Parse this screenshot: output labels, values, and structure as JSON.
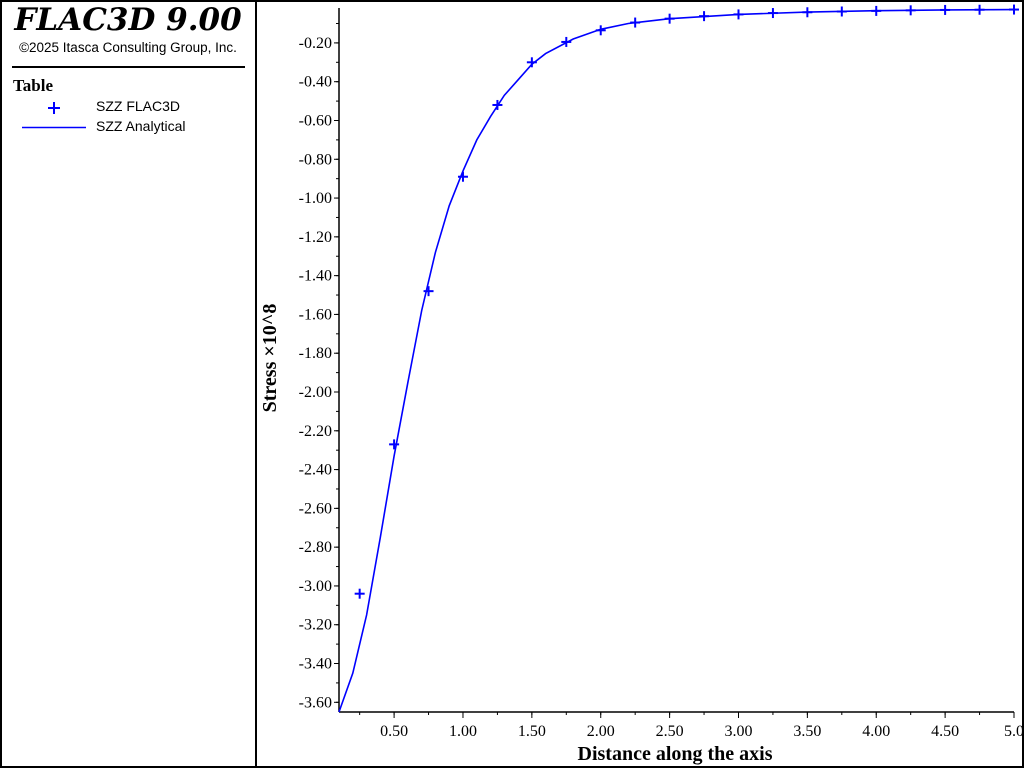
{
  "header": {
    "app_title": "FLAC3D 9.00",
    "copyright": "©2025 Itasca Consulting Group, Inc."
  },
  "legend": {
    "title": "Table",
    "items": [
      {
        "label": "SZZ FLAC3D",
        "marker": "plus"
      },
      {
        "label": "SZZ Analytical",
        "marker": "line"
      }
    ]
  },
  "colors": {
    "series": "#0000ff",
    "axes": "#000000",
    "background": "#ffffff"
  },
  "chart_data": {
    "type": "line",
    "xlabel": "Distance along the axis",
    "ylabel": "Stress ×10^8",
    "xlim": [
      0.1,
      5.0
    ],
    "ylim": [
      -3.65,
      -0.02
    ],
    "xticks": [
      "0.50",
      "1.00",
      "1.50",
      "2.00",
      "2.50",
      "3.00",
      "3.50",
      "4.00",
      "4.50",
      "5.0"
    ],
    "yticks": [
      "-0.20",
      "-0.40",
      "-0.60",
      "-0.80",
      "-1.00",
      "-1.20",
      "-1.40",
      "-1.60",
      "-1.80",
      "-2.00",
      "-2.20",
      "-2.40",
      "-2.60",
      "-2.80",
      "-3.00",
      "-3.20",
      "-3.40",
      "-3.60"
    ],
    "grid": false,
    "legend_position": "left panel",
    "series": [
      {
        "name": "SZZ FLAC3D",
        "marker": "plus",
        "x": [
          0.25,
          0.5,
          0.75,
          1.0,
          1.25,
          1.5,
          1.75,
          2.0,
          2.25,
          2.5,
          2.75,
          3.0,
          3.25,
          3.5,
          3.75,
          4.0,
          4.25,
          4.5,
          4.75,
          5.0
        ],
        "y": [
          -3.04,
          -2.27,
          -1.48,
          -0.89,
          -0.52,
          -0.3,
          -0.195,
          -0.135,
          -0.095,
          -0.075,
          -0.062,
          -0.053,
          -0.046,
          -0.042,
          -0.038,
          -0.035,
          -0.032,
          -0.03,
          -0.029,
          -0.028
        ]
      },
      {
        "name": "SZZ Analytical",
        "marker": "line",
        "x": [
          0.1,
          0.2,
          0.3,
          0.4,
          0.5,
          0.6,
          0.7,
          0.8,
          0.9,
          1.0,
          1.1,
          1.2,
          1.3,
          1.4,
          1.5,
          1.6,
          1.8,
          2.0,
          2.2,
          2.5,
          3.0,
          3.5,
          4.0,
          4.5,
          5.0
        ],
        "y": [
          -3.65,
          -3.45,
          -3.15,
          -2.75,
          -2.33,
          -1.95,
          -1.58,
          -1.28,
          -1.04,
          -0.86,
          -0.7,
          -0.58,
          -0.47,
          -0.39,
          -0.31,
          -0.255,
          -0.18,
          -0.13,
          -0.1,
          -0.075,
          -0.053,
          -0.041,
          -0.034,
          -0.03,
          -0.028
        ]
      }
    ]
  }
}
